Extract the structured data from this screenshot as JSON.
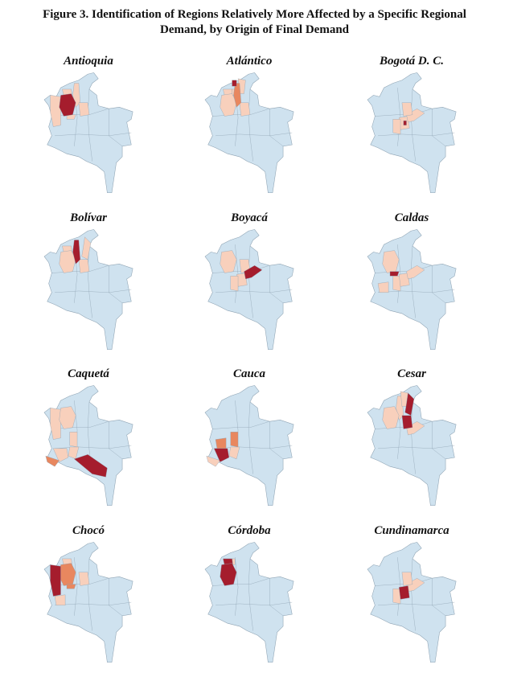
{
  "figure": {
    "title_line1": "Figure 3. Identification of Regions Relatively More Affected by a Specific Regional",
    "title_line2": "Demand, by Origin of Final Demand"
  },
  "colors": {
    "base": "#cfe2ef",
    "border": "#8ea3b3",
    "high": "#a51d2d",
    "medium": "#e8875f",
    "low": "#f8d0bc"
  },
  "panels": [
    {
      "title": "Antioquia",
      "regions": {
        "antioquia": "high",
        "cordoba": "low",
        "bolivar": "low",
        "santander": "low",
        "caldas": "low",
        "choco": "low"
      }
    },
    {
      "title": "Atlántico",
      "regions": {
        "atlantico": "high",
        "bolivar": "medium",
        "magdalena": "low",
        "cordoba": "low",
        "sucre": "low",
        "antioquia": "low",
        "santander": "low"
      }
    },
    {
      "title": "Bogotá D. C.",
      "regions": {
        "bogota": "high",
        "cundinamarca": "low",
        "boyaca": "low",
        "santander": "low",
        "tolima": "low"
      }
    },
    {
      "title": "Bolívar",
      "regions": {
        "bolivar": "high",
        "cordoba": "low",
        "antioquia": "low",
        "santander": "low",
        "cesar": "low"
      }
    },
    {
      "title": "Boyacá",
      "regions": {
        "boyaca": "high",
        "cundinamarca": "low",
        "santander": "low",
        "tolima": "low",
        "antioquia": "low"
      }
    },
    {
      "title": "Caldas",
      "regions": {
        "caldas": "high",
        "antioquia": "low",
        "tolima": "low",
        "cundinamarca": "low",
        "valle": "low",
        "boyaca": "low"
      }
    },
    {
      "title": "Caquetá",
      "regions": {
        "caqueta": "high",
        "huila": "low",
        "narino": "medium",
        "cauca": "low",
        "choco": "low",
        "antioquia": "low",
        "tolima": "low"
      }
    },
    {
      "title": "Cauca",
      "regions": {
        "cauca": "high",
        "valle": "medium",
        "tolima": "medium",
        "narino": "low",
        "huila": "low"
      }
    },
    {
      "title": "Cesar",
      "regions": {
        "cesar": "high",
        "santander": "high",
        "bolivar": "low",
        "antioquia": "low",
        "boyaca": "low",
        "magdalena": "low"
      }
    },
    {
      "title": "Chocó",
      "regions": {
        "choco": "high",
        "antioquia": "medium",
        "caldas": "medium",
        "valle": "low",
        "cordoba": "low",
        "santander": "low"
      }
    },
    {
      "title": "Córdoba",
      "regions": {
        "cordoba": "high",
        "antioquia": "high",
        "sucre": "low"
      }
    },
    {
      "title": "Cundinamarca",
      "regions": {
        "cundinamarca": "high",
        "boyaca": "low",
        "santander": "low",
        "tolima": "low"
      }
    }
  ]
}
